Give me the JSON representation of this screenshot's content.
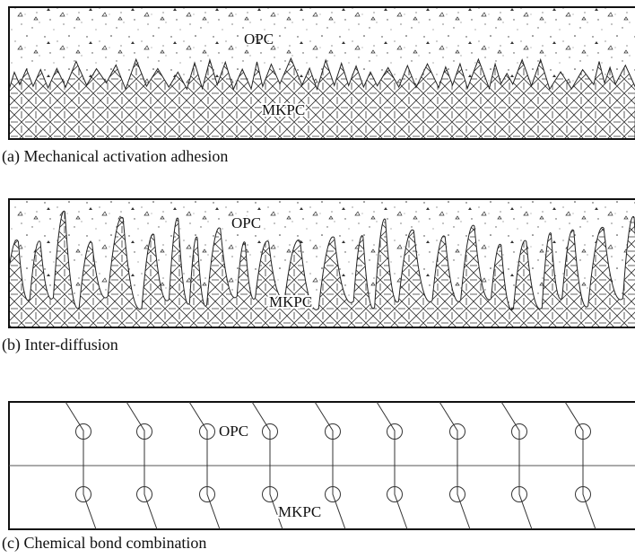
{
  "panels": [
    {
      "top_label": "OPC",
      "bottom_label": "MKPC",
      "caption": "(a) Mechanical activation adhesion"
    },
    {
      "top_label": "OPC",
      "bottom_label": "MKPC",
      "caption": "(b) Inter-diffusion"
    },
    {
      "top_label": "OPC",
      "bottom_label": "MKPC",
      "caption": "(c) Chemical bond combination"
    }
  ]
}
